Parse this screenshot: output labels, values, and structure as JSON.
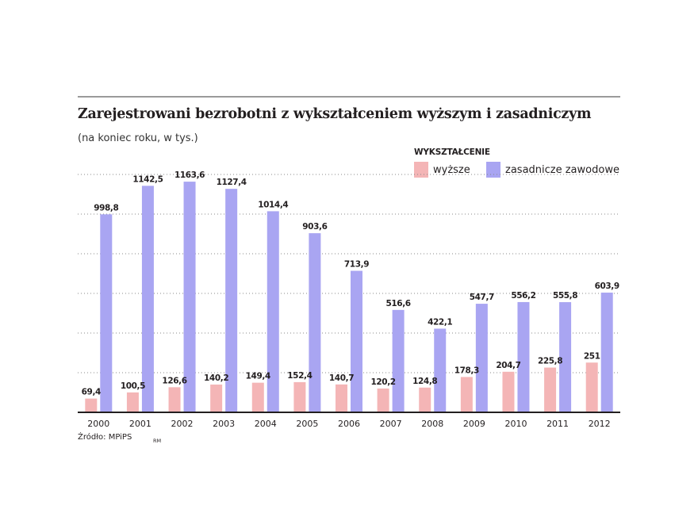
{
  "colors": {
    "higher": "#f4b5b6",
    "vocational": "#a9a5f2",
    "grid": "#888888",
    "axis": "#231f20",
    "rule": "#9a9a9a"
  },
  "footer": {
    "source": "Źródło: MPiPS",
    "initials": "RM"
  },
  "chart_data": {
    "type": "bar",
    "title": "Zarejestrowani bezrobotni z wykształceniem wyższym i zasadniczym",
    "subtitle": "(na koniec roku, w tys.)",
    "legend_title": "WYKSZTAŁCENIE",
    "legend_position": "top-right",
    "categories": [
      "2000",
      "2001",
      "2002",
      "2003",
      "2004",
      "2005",
      "2006",
      "2007",
      "2008",
      "2009",
      "2010",
      "2011",
      "2012"
    ],
    "series": [
      {
        "name": "wyższe",
        "color": "#f4b5b6",
        "values": [
          69.4,
          100.5,
          126.6,
          140.2,
          149.4,
          152.4,
          140.7,
          120.2,
          124.8,
          178.3,
          204.7,
          225.8,
          251
        ],
        "labels": [
          "69,4",
          "100,5",
          "126,6",
          "140,2",
          "149,4",
          "152,4",
          "140,7",
          "120,2",
          "124,8",
          "178,3",
          "204,7",
          "225,8",
          "251"
        ]
      },
      {
        "name": "zasadnicze zawodowe",
        "color": "#a9a5f2",
        "values": [
          998.8,
          1142.5,
          1163.6,
          1127.4,
          1014.4,
          903.6,
          713.9,
          516.6,
          422.1,
          547.7,
          556.2,
          555.8,
          603.9
        ],
        "labels": [
          "998,8",
          "1142,5",
          "1163,6",
          "1127,4",
          "1014,4",
          "903,6",
          "713,9",
          "516,6",
          "422,1",
          "547,7",
          "556,2",
          "555,8",
          "603,9"
        ]
      }
    ],
    "ylim": [
      0,
      1200
    ],
    "grid": true,
    "gridlines": [
      200,
      400,
      600,
      800,
      1000,
      1200
    ]
  }
}
